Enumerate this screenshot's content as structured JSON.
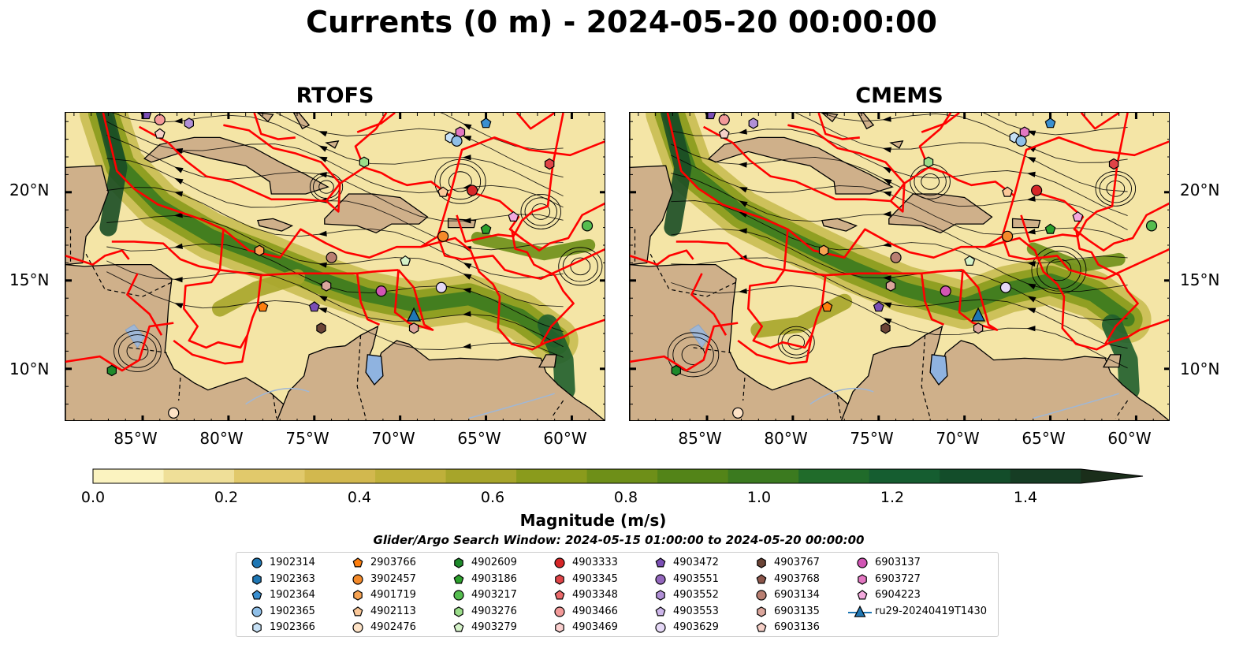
{
  "title": "Currents (0 m) - 2024-05-20 00:00:00",
  "panels": [
    {
      "title": "RTOFS"
    },
    {
      "title": "CMEMS"
    }
  ],
  "map": {
    "lon_range": [
      -89.5,
      -58
    ],
    "lat_range": [
      7,
      24.5
    ],
    "lat_ticks": [
      "20°N",
      "15°N",
      "10°N"
    ],
    "lon_ticks": [
      "85°W",
      "80°W",
      "75°W",
      "70°W",
      "65°W",
      "60°W"
    ],
    "land_color": "#cfb08a",
    "eez_color": "#ff0000"
  },
  "colorbar": {
    "label": "Magnitude (m/s)",
    "ticks": [
      "0.0",
      "0.2",
      "0.4",
      "0.6",
      "0.8",
      "1.0",
      "1.2",
      "1.4"
    ],
    "range": [
      0,
      1.5
    ],
    "extend": "max",
    "colors": [
      "#fbf3c0",
      "#efdf98",
      "#e1c96b",
      "#d2b84e",
      "#bfb03a",
      "#a7a52a",
      "#8a9b1c",
      "#6e8f18",
      "#538418",
      "#3b7a1f",
      "#206b2a",
      "#155d30",
      "#134d2a",
      "#163d24",
      "#1a2e1a"
    ]
  },
  "search_window": "Glider/Argo Search Window: 2024-05-15 01:00:00 to 2024-05-20 00:00:00",
  "legend": {
    "columns": [
      [
        {
          "label": "1902314",
          "marker": "circle",
          "color": "#1f77b4"
        },
        {
          "label": "1902363",
          "marker": "hexagon",
          "color": "#1f77b4"
        },
        {
          "label": "1902364",
          "marker": "pentagon",
          "color": "#3a8fd0"
        },
        {
          "label": "1902365",
          "marker": "circle",
          "color": "#8fbfe8"
        },
        {
          "label": "1902366",
          "marker": "hexagon",
          "color": "#c6e0f5"
        }
      ],
      [
        {
          "label": "2903766",
          "marker": "pentagon",
          "color": "#ff7f0e"
        },
        {
          "label": "3902457",
          "marker": "circle",
          "color": "#f48a2a"
        },
        {
          "label": "4901719",
          "marker": "hexagon",
          "color": "#f7a352"
        },
        {
          "label": "4902113",
          "marker": "pentagon",
          "color": "#fbc899"
        },
        {
          "label": "4902476",
          "marker": "circle",
          "color": "#fde2c6"
        }
      ],
      [
        {
          "label": "4902609",
          "marker": "hexagon",
          "color": "#1e8a2b"
        },
        {
          "label": "4903186",
          "marker": "pentagon",
          "color": "#2ca02c"
        },
        {
          "label": "4903217",
          "marker": "circle",
          "color": "#55bd4f"
        },
        {
          "label": "4903276",
          "marker": "hexagon",
          "color": "#9bdd8a"
        },
        {
          "label": "4903279",
          "marker": "pentagon",
          "color": "#d5f2c8"
        }
      ],
      [
        {
          "label": "4903333",
          "marker": "circle",
          "color": "#d62728"
        },
        {
          "label": "4903345",
          "marker": "hexagon",
          "color": "#e04447"
        },
        {
          "label": "4903348",
          "marker": "pentagon",
          "color": "#eb6a6b"
        },
        {
          "label": "4903466",
          "marker": "circle",
          "color": "#f39a99"
        },
        {
          "label": "4903469",
          "marker": "hexagon",
          "color": "#fbd0cf"
        }
      ],
      [
        {
          "label": "4903472",
          "marker": "pentagon",
          "color": "#7b4fb5"
        },
        {
          "label": "4903551",
          "marker": "circle",
          "color": "#9467bd"
        },
        {
          "label": "4903552",
          "marker": "hexagon",
          "color": "#b08fd6"
        },
        {
          "label": "4903553",
          "marker": "pentagon",
          "color": "#cdb6ea"
        },
        {
          "label": "4903629",
          "marker": "circle",
          "color": "#e5d8f6"
        }
      ],
      [
        {
          "label": "4903767",
          "marker": "hexagon",
          "color": "#6b4436"
        },
        {
          "label": "4903768",
          "marker": "pentagon",
          "color": "#8c564b"
        },
        {
          "label": "6903134",
          "marker": "circle",
          "color": "#b97f72"
        },
        {
          "label": "6903135",
          "marker": "hexagon",
          "color": "#dba69c"
        },
        {
          "label": "6903136",
          "marker": "pentagon",
          "color": "#f5cfc7"
        }
      ],
      [
        {
          "label": "6903137",
          "marker": "circle",
          "color": "#d155b4"
        },
        {
          "label": "6903727",
          "marker": "hexagon",
          "color": "#e377c2"
        },
        {
          "label": "6904223",
          "marker": "pentagon",
          "color": "#f3a9dd"
        },
        {
          "label": "ru29-20240419T1430",
          "marker": "triangle-line",
          "color": "#1f77b4"
        }
      ]
    ]
  }
}
